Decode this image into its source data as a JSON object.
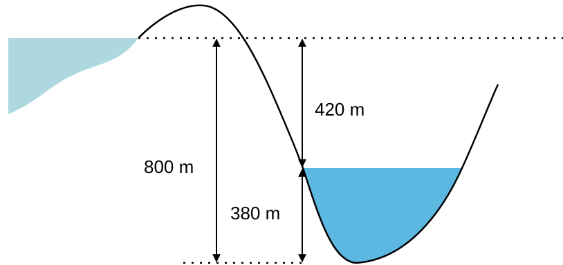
{
  "labels": {
    "total_height": "800 m",
    "upper_drop": "420 m",
    "lower_depth": "380 m"
  }
}
